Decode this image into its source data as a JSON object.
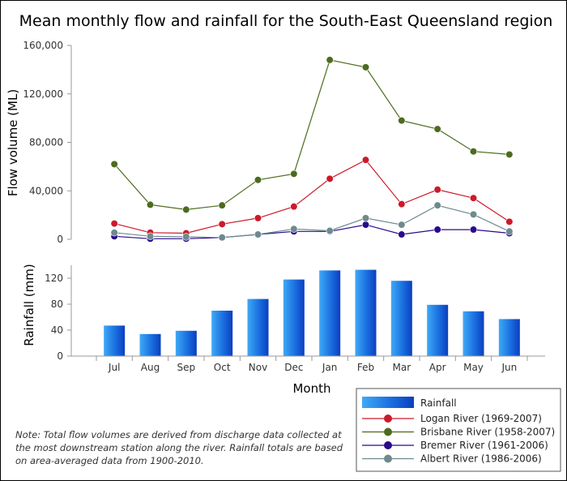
{
  "chart_data": {
    "title": "Mean monthly flow and rainfall for the South-East Queensland region",
    "xlabel": "Month",
    "categories": [
      "Jul",
      "Aug",
      "Sep",
      "Oct",
      "Nov",
      "Dec",
      "Jan",
      "Feb",
      "Mar",
      "Apr",
      "May",
      "Jun"
    ],
    "flow": {
      "type": "line",
      "ylabel": "Flow volume (ML)",
      "ylim": [
        0,
        160000
      ],
      "yticks": [
        0,
        40000,
        80000,
        120000,
        160000
      ],
      "ytick_labels": [
        "0",
        "40,000",
        "80,000",
        "120,000",
        "160,000"
      ],
      "series": [
        {
          "name": "Logan River (1969-2007)",
          "color": "#cc1a2a",
          "values": [
            13000,
            5500,
            5000,
            12500,
            17500,
            27000,
            50000,
            65500,
            29000,
            41000,
            34000,
            14500
          ]
        },
        {
          "name": "Brisbane River (1958-2007)",
          "color": "#4d6b1f",
          "values": [
            62000,
            28500,
            24500,
            28000,
            49000,
            54000,
            148000,
            142000,
            98000,
            91000,
            72500,
            70000
          ]
        },
        {
          "name": "Bremer River (1961-2006)",
          "color": "#2a0a8a",
          "values": [
            2500,
            500,
            500,
            1500,
            4000,
            6500,
            6500,
            12000,
            4000,
            8000,
            8000,
            5000
          ]
        },
        {
          "name": "Albert River (1986-2006)",
          "color": "#6e8a8e",
          "values": [
            5500,
            2500,
            2000,
            1500,
            4000,
            8500,
            7000,
            17500,
            12000,
            28000,
            20500,
            6500
          ]
        }
      ]
    },
    "rainfall": {
      "type": "bar",
      "name": "Rainfall",
      "ylabel": "Rainfall (mm)",
      "ylim": [
        0,
        140
      ],
      "yticks": [
        0,
        40,
        80,
        120
      ],
      "values": [
        47,
        34,
        39,
        70,
        88,
        118,
        132,
        133,
        116,
        79,
        69,
        57
      ]
    },
    "legend_position": "bottom-right"
  },
  "note": "Note: Total flow volumes are derived from discharge data collected at the most downstream station along the river. Rainfall totals are based on area-averaged data from 1900-2010."
}
